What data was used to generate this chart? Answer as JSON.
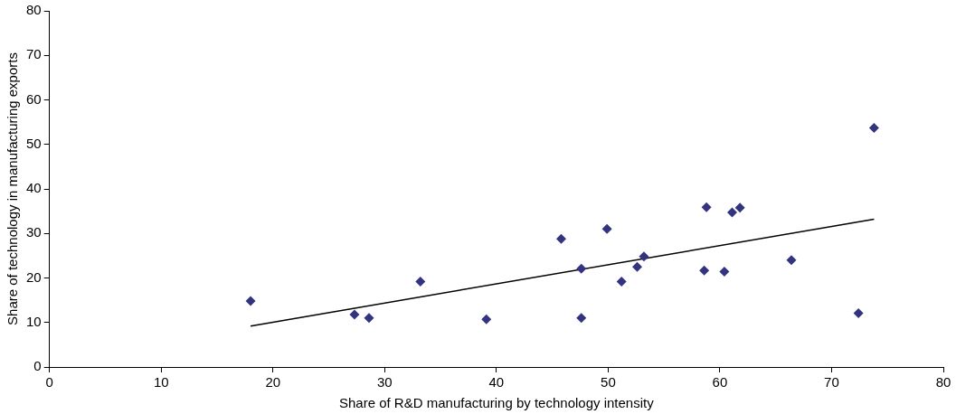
{
  "chart_data": {
    "type": "scatter",
    "xlabel": "Share of R&D manufacturing by technology intensity",
    "ylabel": "Share of technology in manufacturing exports",
    "xlim": [
      0,
      80
    ],
    "xticks": [
      0,
      10,
      20,
      30,
      40,
      50,
      60,
      70,
      80
    ],
    "ylim": [
      0,
      80
    ],
    "yticks": [
      0,
      10,
      20,
      30,
      40,
      50,
      60,
      70,
      80
    ],
    "grid": false,
    "legend": false,
    "marker": "diamond",
    "series": [
      {
        "color": "#333380",
        "x": [
          18,
          27.3,
          28.6,
          33.2,
          39.1,
          45.8,
          47.6,
          47.6,
          49.9,
          51.2,
          52.6,
          53.2,
          58.6,
          58.8,
          60.4,
          61.1,
          61.8,
          66.4,
          72.4,
          73.8
        ],
        "values": [
          14.8,
          11.8,
          11,
          19.2,
          10.7,
          28.8,
          22.1,
          11,
          31,
          19.2,
          22.5,
          24.8,
          21.7,
          35.9,
          21.4,
          34.7,
          35.8,
          24,
          12.1,
          53.7
        ]
      },
      {
        "type": "line",
        "color": "#000000",
        "x": [
          18,
          73.8
        ],
        "values": [
          9.2,
          33.2
        ],
        "marker": "none"
      }
    ]
  }
}
